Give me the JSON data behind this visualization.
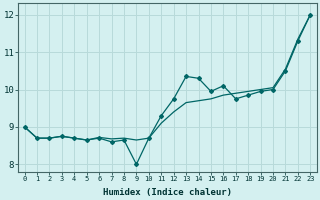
{
  "title": "",
  "xlabel": "Humidex (Indice chaleur)",
  "bg_color": "#d4f0f0",
  "grid_color": "#b8dada",
  "line_color": "#006666",
  "x_data": [
    0,
    1,
    2,
    3,
    4,
    5,
    6,
    7,
    8,
    9,
    10,
    11,
    12,
    13,
    14,
    15,
    16,
    17,
    18,
    19,
    20,
    21,
    22,
    23
  ],
  "y_detail": [
    9.0,
    8.7,
    8.7,
    8.75,
    8.7,
    8.65,
    8.7,
    8.6,
    8.65,
    8.0,
    8.7,
    9.3,
    9.75,
    10.35,
    10.3,
    9.95,
    10.1,
    9.75,
    9.85,
    9.95,
    10.0,
    10.5,
    11.3,
    12.0
  ],
  "y_trend": [
    9.0,
    8.7,
    8.7,
    8.75,
    8.7,
    8.65,
    8.72,
    8.68,
    8.7,
    8.65,
    8.7,
    9.1,
    9.4,
    9.65,
    9.7,
    9.75,
    9.85,
    9.9,
    9.95,
    10.0,
    10.05,
    10.55,
    11.35,
    12.0
  ],
  "ylim": [
    7.8,
    12.3
  ],
  "xlim": [
    -0.5,
    23.5
  ],
  "yticks": [
    8,
    9,
    10,
    11,
    12
  ],
  "xticks": [
    0,
    1,
    2,
    3,
    4,
    5,
    6,
    7,
    8,
    9,
    10,
    11,
    12,
    13,
    14,
    15,
    16,
    17,
    18,
    19,
    20,
    21,
    22,
    23
  ]
}
